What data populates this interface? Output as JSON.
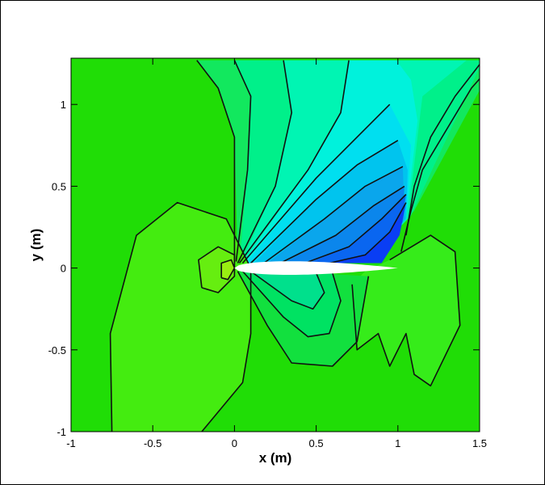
{
  "chart_data": {
    "type": "heatmap",
    "title": "",
    "xlabel": "x (m)",
    "ylabel": "y (m)",
    "xlim": [
      -1,
      1.5
    ],
    "ylim": [
      -1,
      1.27
    ],
    "xticks": [
      -1,
      -0.5,
      0,
      0.5,
      1,
      1.5
    ],
    "xtick_labels": [
      "-1",
      "-0.5",
      "0",
      "0.5",
      "1",
      "1.5"
    ],
    "yticks": [
      -1,
      -0.5,
      0,
      0.5,
      1
    ],
    "ytick_labels": [
      "-1",
      "-0.5",
      "0",
      "0.5",
      "1"
    ],
    "grid": false,
    "legend": "none",
    "background_color": "#20dd06",
    "airfoil": {
      "leading_edge": [
        0,
        0
      ],
      "trailing_edge": [
        1,
        0
      ],
      "fill": "#ffffff"
    },
    "contour_regions": [
      {
        "name": "suction-band-1",
        "color": "#12e85e",
        "points": [
          [
            -0.23,
            1.27
          ],
          [
            -0.1,
            1.1
          ],
          [
            0,
            0.8
          ],
          [
            0.02,
            0.05
          ],
          [
            0.03,
            0.02
          ],
          [
            0.4,
            0.03
          ],
          [
            0.8,
            0.03
          ],
          [
            1.1,
            0.35
          ],
          [
            1.6,
            1.27
          ]
        ]
      },
      {
        "name": "suction-band-2",
        "color": "#00f08a",
        "points": [
          [
            0.0,
            1.27
          ],
          [
            0.1,
            1.05
          ],
          [
            0.08,
            0.6
          ],
          [
            0.03,
            0.03
          ],
          [
            0.4,
            0.03
          ],
          [
            0.8,
            0.03
          ],
          [
            1.08,
            0.32
          ],
          [
            1.52,
            1.27
          ]
        ]
      },
      {
        "name": "suction-band-3",
        "color": "#00f5b3",
        "points": [
          [
            0.3,
            1.27
          ],
          [
            0.35,
            0.95
          ],
          [
            0.25,
            0.5
          ],
          [
            0.04,
            0.03
          ],
          [
            0.4,
            0.03
          ],
          [
            0.8,
            0.03
          ],
          [
            1.06,
            0.3
          ],
          [
            1.15,
            1.05
          ],
          [
            1.42,
            1.27
          ]
        ]
      },
      {
        "name": "suction-band-4",
        "color": "#00f2dc",
        "points": [
          [
            0.7,
            1.27
          ],
          [
            0.65,
            0.95
          ],
          [
            0.45,
            0.6
          ],
          [
            0.05,
            0.03
          ],
          [
            0.4,
            0.03
          ],
          [
            0.8,
            0.03
          ],
          [
            1.05,
            0.3
          ],
          [
            1.12,
            0.9
          ],
          [
            1.08,
            1.15
          ],
          [
            0.99,
            1.27
          ]
        ]
      },
      {
        "name": "suction-band-5",
        "color": "#00dff0",
        "points": [
          [
            0.95,
            1.0
          ],
          [
            0.75,
            0.8
          ],
          [
            0.5,
            0.55
          ],
          [
            0.07,
            0.03
          ],
          [
            0.4,
            0.03
          ],
          [
            0.8,
            0.03
          ],
          [
            1.05,
            0.3
          ],
          [
            1.08,
            0.75
          ]
        ]
      },
      {
        "name": "suction-band-6",
        "color": "#00c4ee",
        "points": [
          [
            1.0,
            0.78
          ],
          [
            0.75,
            0.63
          ],
          [
            0.5,
            0.42
          ],
          [
            0.12,
            0.03
          ],
          [
            0.4,
            0.03
          ],
          [
            0.8,
            0.03
          ],
          [
            1.05,
            0.3
          ],
          [
            1.06,
            0.6
          ]
        ]
      },
      {
        "name": "suction-band-7",
        "color": "#0aa6ec",
        "points": [
          [
            1.03,
            0.62
          ],
          [
            0.8,
            0.5
          ],
          [
            0.55,
            0.3
          ],
          [
            0.2,
            0.03
          ],
          [
            0.4,
            0.03
          ],
          [
            0.8,
            0.03
          ],
          [
            1.04,
            0.3
          ]
        ]
      },
      {
        "name": "suction-band-8",
        "color": "#0b86ec",
        "points": [
          [
            1.04,
            0.5
          ],
          [
            0.85,
            0.38
          ],
          [
            0.62,
            0.2
          ],
          [
            0.3,
            0.03
          ],
          [
            0.6,
            0.03
          ],
          [
            0.8,
            0.03
          ],
          [
            1.03,
            0.28
          ]
        ]
      },
      {
        "name": "suction-band-9",
        "color": "#0a66f0",
        "points": [
          [
            1.05,
            0.45
          ],
          [
            0.9,
            0.3
          ],
          [
            0.7,
            0.13
          ],
          [
            0.45,
            0.03
          ],
          [
            0.8,
            0.03
          ],
          [
            1.02,
            0.25
          ]
        ]
      },
      {
        "name": "suction-band-10",
        "color": "#0a3ef4",
        "points": [
          [
            1.05,
            0.4
          ],
          [
            0.95,
            0.22
          ],
          [
            0.8,
            0.08
          ],
          [
            0.6,
            0.03
          ],
          [
            0.9,
            0.03
          ],
          [
            1.01,
            0.2
          ]
        ]
      },
      {
        "name": "pressure-lobe-1",
        "color": "#44ec10",
        "points": [
          [
            -0.75,
            -1
          ],
          [
            -0.76,
            -0.4
          ],
          [
            -0.6,
            0.2
          ],
          [
            -0.35,
            0.4
          ],
          [
            -0.05,
            0.3
          ],
          [
            0.1,
            0
          ],
          [
            0.1,
            -0.4
          ],
          [
            0.05,
            -0.7
          ],
          [
            -0.2,
            -1
          ]
        ]
      },
      {
        "name": "pressure-lobe-2",
        "color": "#66ee10",
        "points": [
          [
            -0.2,
            -0.12
          ],
          [
            -0.22,
            0.05
          ],
          [
            -0.1,
            0.13
          ],
          [
            0.0,
            0.08
          ],
          [
            0.0,
            -0.05
          ],
          [
            -0.1,
            -0.15
          ]
        ]
      },
      {
        "name": "pressure-lobe-3",
        "color": "#99ee12",
        "points": [
          [
            -0.08,
            -0.06
          ],
          [
            -0.08,
            0.03
          ],
          [
            -0.02,
            0.05
          ],
          [
            0.0,
            0.0
          ],
          [
            -0.04,
            -0.07
          ]
        ]
      },
      {
        "name": "underside-lobe",
        "color": "#36ec1a",
        "points": [
          [
            0.95,
            0.05
          ],
          [
            1.2,
            0.2
          ],
          [
            1.35,
            0.1
          ],
          [
            1.38,
            -0.35
          ],
          [
            1.2,
            -0.72
          ],
          [
            1.1,
            -0.65
          ],
          [
            1.05,
            -0.4
          ],
          [
            0.95,
            -0.6
          ],
          [
            0.88,
            -0.4
          ],
          [
            0.75,
            -0.5
          ],
          [
            0.72,
            -0.1
          ],
          [
            0.8,
            -0.02
          ]
        ]
      },
      {
        "name": "lower-band-1",
        "color": "#12e03e",
        "points": [
          [
            0.02,
            -0.02
          ],
          [
            0.2,
            -0.35
          ],
          [
            0.35,
            -0.58
          ],
          [
            0.6,
            -0.6
          ],
          [
            0.75,
            -0.45
          ],
          [
            0.82,
            -0.05
          ],
          [
            0.5,
            -0.03
          ]
        ]
      },
      {
        "name": "lower-band-2",
        "color": "#00e262",
        "points": [
          [
            0.05,
            -0.02
          ],
          [
            0.3,
            -0.3
          ],
          [
            0.45,
            -0.42
          ],
          [
            0.58,
            -0.4
          ],
          [
            0.65,
            -0.2
          ],
          [
            0.6,
            -0.03
          ],
          [
            0.4,
            -0.03
          ]
        ]
      },
      {
        "name": "lower-band-3",
        "color": "#00e08c",
        "points": [
          [
            0.1,
            -0.02
          ],
          [
            0.35,
            -0.2
          ],
          [
            0.48,
            -0.25
          ],
          [
            0.55,
            -0.15
          ],
          [
            0.5,
            -0.03
          ]
        ]
      }
    ],
    "contour_lines": [
      {
        "name": "contour-1",
        "points": [
          [
            -0.23,
            1.27
          ],
          [
            -0.1,
            1.1
          ],
          [
            0,
            0.8
          ],
          [
            0.0,
            0.05
          ]
        ]
      },
      {
        "name": "contour-2",
        "points": [
          [
            0.0,
            1.27
          ],
          [
            0.1,
            1.05
          ],
          [
            0.08,
            0.6
          ],
          [
            0.01,
            0.04
          ]
        ]
      },
      {
        "name": "contour-3",
        "points": [
          [
            0.3,
            1.27
          ],
          [
            0.35,
            0.95
          ],
          [
            0.25,
            0.5
          ],
          [
            0.02,
            0.03
          ]
        ]
      },
      {
        "name": "contour-4",
        "points": [
          [
            0.7,
            1.27
          ],
          [
            0.65,
            0.95
          ],
          [
            0.45,
            0.6
          ],
          [
            0.03,
            0.03
          ]
        ]
      },
      {
        "name": "contour-5",
        "points": [
          [
            0.95,
            1.0
          ],
          [
            0.75,
            0.8
          ],
          [
            0.5,
            0.55
          ],
          [
            0.05,
            0.03
          ]
        ]
      },
      {
        "name": "contour-6",
        "points": [
          [
            1.0,
            0.78
          ],
          [
            0.75,
            0.63
          ],
          [
            0.5,
            0.42
          ],
          [
            0.1,
            0.03
          ]
        ]
      },
      {
        "name": "contour-7",
        "points": [
          [
            1.03,
            0.62
          ],
          [
            0.8,
            0.5
          ],
          [
            0.55,
            0.3
          ],
          [
            0.18,
            0.03
          ]
        ]
      },
      {
        "name": "contour-8",
        "points": [
          [
            1.04,
            0.5
          ],
          [
            0.85,
            0.38
          ],
          [
            0.62,
            0.2
          ],
          [
            0.28,
            0.03
          ]
        ]
      },
      {
        "name": "contour-9",
        "points": [
          [
            1.05,
            0.45
          ],
          [
            0.9,
            0.3
          ],
          [
            0.7,
            0.13
          ],
          [
            0.43,
            0.03
          ]
        ]
      },
      {
        "name": "contour-10",
        "points": [
          [
            1.05,
            0.4
          ],
          [
            0.95,
            0.22
          ],
          [
            0.8,
            0.08
          ],
          [
            0.58,
            0.03
          ]
        ]
      },
      {
        "name": "contour-shock",
        "points": [
          [
            1.6,
            1.27
          ],
          [
            1.45,
            1.1
          ],
          [
            1.3,
            0.85
          ],
          [
            1.15,
            0.6
          ],
          [
            1.08,
            0.35
          ],
          [
            1.02,
            0.1
          ]
        ]
      },
      {
        "name": "contour-shock-2",
        "points": [
          [
            1.52,
            1.27
          ],
          [
            1.35,
            1.05
          ],
          [
            1.2,
            0.8
          ],
          [
            1.1,
            0.5
          ],
          [
            1.05,
            0.2
          ]
        ]
      },
      {
        "name": "contour-outer-lobe",
        "points": [
          [
            -0.75,
            -1
          ],
          [
            -0.76,
            -0.4
          ],
          [
            -0.6,
            0.2
          ],
          [
            -0.35,
            0.4
          ],
          [
            -0.05,
            0.3
          ],
          [
            0.1,
            0
          ],
          [
            0.1,
            -0.4
          ],
          [
            0.05,
            -0.7
          ],
          [
            -0.2,
            -1
          ]
        ]
      },
      {
        "name": "contour-mid-lobe",
        "points": [
          [
            -0.2,
            -0.12
          ],
          [
            -0.22,
            0.05
          ],
          [
            -0.1,
            0.13
          ],
          [
            0.0,
            0.08
          ],
          [
            0.0,
            -0.05
          ],
          [
            -0.1,
            -0.15
          ],
          [
            -0.2,
            -0.12
          ]
        ]
      },
      {
        "name": "contour-inner-lobe",
        "points": [
          [
            -0.08,
            -0.06
          ],
          [
            -0.08,
            0.03
          ],
          [
            -0.02,
            0.05
          ],
          [
            0.0,
            0.0
          ],
          [
            -0.04,
            -0.07
          ],
          [
            -0.08,
            -0.06
          ]
        ]
      },
      {
        "name": "contour-lower-1",
        "points": [
          [
            0.02,
            -0.02
          ],
          [
            0.2,
            -0.35
          ],
          [
            0.35,
            -0.58
          ],
          [
            0.6,
            -0.6
          ],
          [
            0.75,
            -0.45
          ],
          [
            0.82,
            -0.05
          ]
        ]
      },
      {
        "name": "contour-lower-2",
        "points": [
          [
            0.05,
            -0.02
          ],
          [
            0.3,
            -0.3
          ],
          [
            0.45,
            -0.42
          ],
          [
            0.58,
            -0.4
          ],
          [
            0.65,
            -0.2
          ],
          [
            0.6,
            -0.03
          ]
        ]
      },
      {
        "name": "contour-lower-3",
        "points": [
          [
            0.1,
            -0.02
          ],
          [
            0.35,
            -0.2
          ],
          [
            0.48,
            -0.25
          ],
          [
            0.55,
            -0.15
          ],
          [
            0.5,
            -0.03
          ]
        ]
      },
      {
        "name": "contour-underside",
        "points": [
          [
            0.95,
            0.05
          ],
          [
            1.2,
            0.2
          ],
          [
            1.35,
            0.1
          ],
          [
            1.38,
            -0.35
          ],
          [
            1.2,
            -0.72
          ],
          [
            1.1,
            -0.65
          ],
          [
            1.05,
            -0.4
          ],
          [
            0.95,
            -0.6
          ],
          [
            0.88,
            -0.4
          ],
          [
            0.75,
            -0.5
          ],
          [
            0.72,
            -0.1
          ]
        ]
      }
    ]
  }
}
